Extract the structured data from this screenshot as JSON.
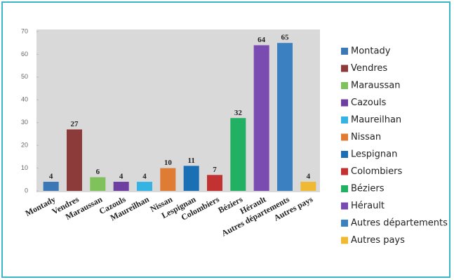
{
  "chart_data": {
    "type": "bar",
    "categories": [
      "Montady",
      "Vendres",
      "Maraussan",
      "Cazouls",
      "Maureilhan",
      "Nissan",
      "Lespignan",
      "Colombiers",
      "Béziers",
      "Hérault",
      "Autres départements",
      "Autres pays"
    ],
    "values": [
      4,
      27,
      6,
      4,
      4,
      10,
      11,
      7,
      32,
      64,
      65,
      4
    ],
    "colors": [
      "#3b78b5",
      "#8c3a3a",
      "#7fc25c",
      "#6e3fa0",
      "#35b3e3",
      "#e07b33",
      "#1a6fb5",
      "#c23232",
      "#22b163",
      "#7a4bb1",
      "#3b80c0",
      "#f0b933"
    ],
    "ylim": [
      0,
      70
    ],
    "yticks": [
      0,
      10,
      20,
      30,
      40,
      50,
      60,
      70
    ],
    "legend": "right"
  }
}
